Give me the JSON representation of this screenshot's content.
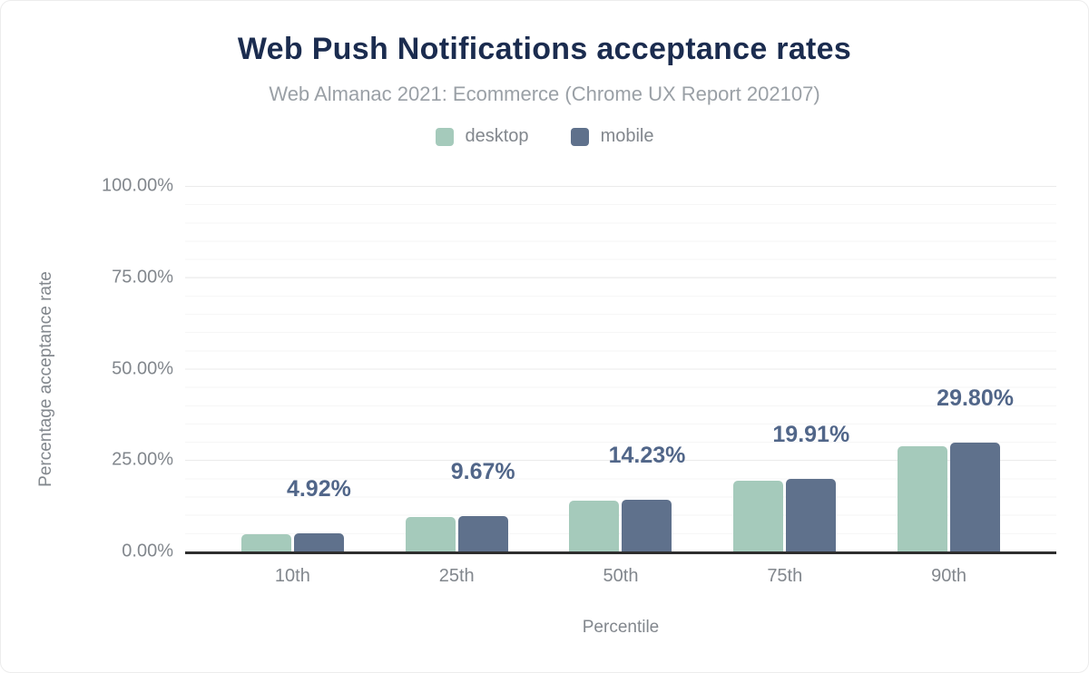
{
  "header": {
    "title": "Web Push Notifications acceptance rates",
    "subtitle": "Web Almanac 2021: Ecommerce (Chrome UX Report 202107)"
  },
  "legend": [
    {
      "label": "desktop",
      "color": "#a5cabb"
    },
    {
      "label": "mobile",
      "color": "#5f718c"
    }
  ],
  "chart_data": {
    "type": "bar",
    "categories": [
      "10th",
      "25th",
      "50th",
      "75th",
      "90th"
    ],
    "series": [
      {
        "name": "desktop",
        "color": "#a5cabb",
        "values": [
          4.7,
          9.4,
          13.9,
          19.3,
          28.8
        ]
      },
      {
        "name": "mobile",
        "color": "#5f718c",
        "values": [
          4.92,
          9.67,
          14.23,
          19.91,
          29.8
        ]
      }
    ],
    "annotations": [
      "4.92%",
      "9.67%",
      "14.23%",
      "19.91%",
      "29.80%"
    ],
    "annotation_series": "mobile",
    "title": "Web Push Notifications acceptance rates",
    "xlabel": "Percentile",
    "ylabel": "Percentage acceptance rate",
    "y_ticks": [
      "0.00%",
      "25.00%",
      "50.00%",
      "75.00%",
      "100.00%"
    ],
    "ylim": [
      0,
      100
    ],
    "grid": {
      "minor_step": 5,
      "major_step": 25,
      "show": true
    },
    "legend_position": "top",
    "annotation_color": "#516689",
    "axis_line_color": "#2e2e2e"
  }
}
